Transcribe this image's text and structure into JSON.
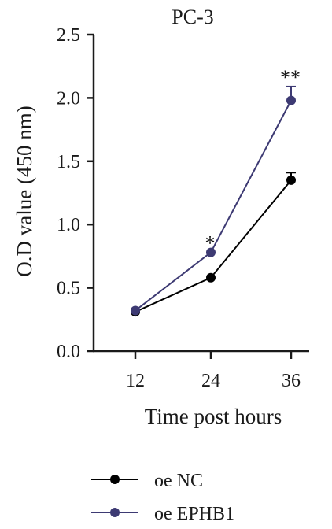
{
  "chart_data": {
    "type": "line",
    "title": "PC-3",
    "xlabel": "Time post hours",
    "ylabel": "O.D value (450 nm)",
    "x": [
      12,
      24,
      36
    ],
    "x_tick_labels": [
      "12",
      "24",
      "36"
    ],
    "ylim": [
      0.0,
      2.5
    ],
    "y_ticks": [
      0.0,
      0.5,
      1.0,
      1.5,
      2.0,
      2.5
    ],
    "y_tick_labels": [
      "0.0",
      "0.5",
      "1.0",
      "1.5",
      "2.0",
      "2.5"
    ],
    "grid": false,
    "legend_position": "bottom",
    "series": [
      {
        "name": "oe NC",
        "color": "#000000",
        "values": [
          0.31,
          0.58,
          1.35
        ],
        "errors": [
          0.0,
          0.0,
          0.06
        ]
      },
      {
        "name": "oe EPHB1",
        "color": "#3d3a73",
        "values": [
          0.32,
          0.78,
          1.98
        ],
        "errors": [
          0.0,
          0.0,
          0.11
        ]
      }
    ],
    "annotations": [
      {
        "x": 24,
        "text": "*"
      },
      {
        "x": 36,
        "text": "**"
      }
    ]
  }
}
